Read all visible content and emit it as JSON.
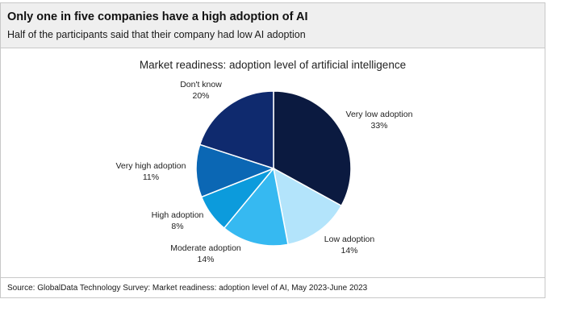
{
  "header": {
    "title": "Only one in five companies have a high adoption of AI",
    "subtitle": "Half of the participants said that their company had low AI adoption"
  },
  "source": "Source: GlobalData Technology Survey: Market readiness: adoption level of AI, May 2023-June 2023",
  "chart_data": {
    "type": "pie",
    "title": "Market readiness: adoption level of artificial intelligence",
    "slices": [
      {
        "label": "Very low adoption",
        "value": 33,
        "value_label": "33%",
        "color": "#0b1a40"
      },
      {
        "label": "Low adoption",
        "value": 14,
        "value_label": "14%",
        "color": "#b3e4fb"
      },
      {
        "label": "Moderate adoption",
        "value": 14,
        "value_label": "14%",
        "color": "#36b9f1"
      },
      {
        "label": "High adoption",
        "value": 8,
        "value_label": "8%",
        "color": "#0c9bdc"
      },
      {
        "label": "Very high adoption",
        "value": 11,
        "value_label": "11%",
        "color": "#0b67b4"
      },
      {
        "label": "Don't know",
        "value": 20,
        "value_label": "20%",
        "color": "#0f2a6e"
      }
    ]
  }
}
